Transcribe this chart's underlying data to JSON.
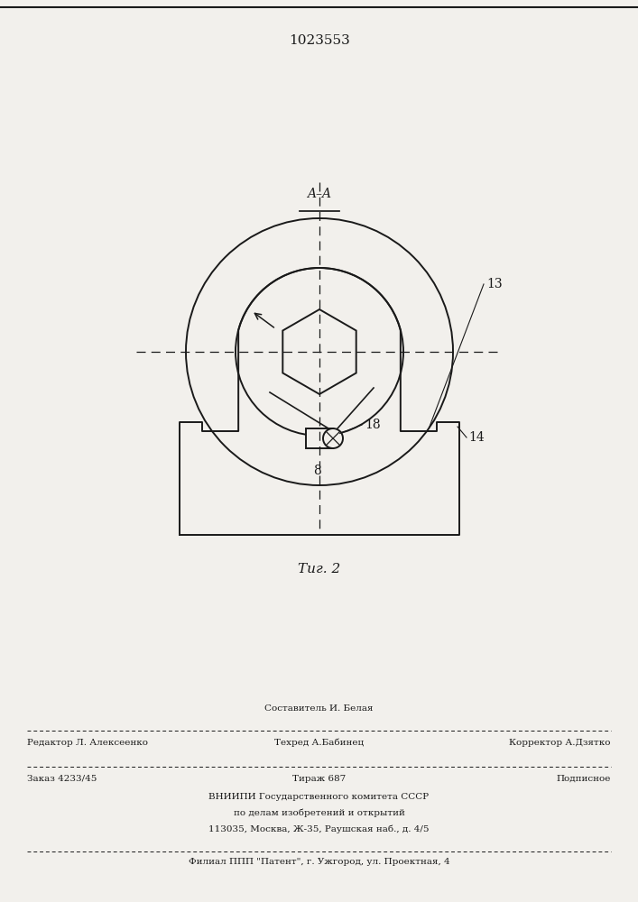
{
  "patent_number": "1023553",
  "fig_label": "Τиг. 2",
  "section_label": "A–A",
  "label_13": "13",
  "label_14": "14",
  "label_8": "8",
  "label_18": "18",
  "bg_color": "#f2f0ec",
  "line_color": "#1a1a1a",
  "footer_line1": "Составитель И. Белая",
  "footer_line2_left": "Редактор Л. Алексеенко",
  "footer_line2_mid": "Техред А.Бабинец",
  "footer_line2_right": "Корректор А.Дзятко",
  "footer_line3_left": "Заказ 4233/45",
  "footer_line3_mid": "Тираж 687",
  "footer_line3_right": "Подписное",
  "footer_line4": "ВНИИПИ Государственного комитета СССР",
  "footer_line5": "по делам изобретений и открытий",
  "footer_line6": "113035, Москва, Ж-35, Раушская наб., д. 4/5",
  "footer_line7": "Филиал ППП \"Патент\", г. Ужгород, ул. Проектная, 4"
}
